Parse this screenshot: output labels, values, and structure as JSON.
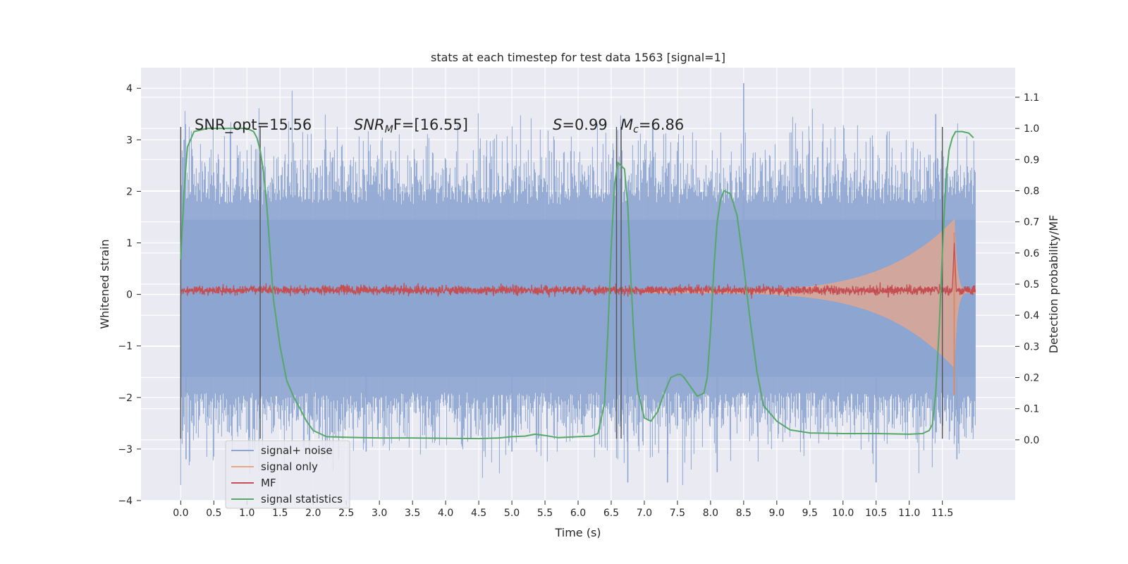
{
  "chart_data": {
    "type": "line",
    "title": "stats at each timestep for test data 1563 [signal=1]",
    "xlabel": "Time (s)",
    "ylabel": "Whitened strain",
    "y2label": "Detection probability/MF",
    "xlim": [
      -0.6,
      12.6
    ],
    "ylim": [
      -4.0,
      4.4
    ],
    "y2lim": [
      -0.195,
      1.195
    ],
    "grid": true,
    "legend_position": "lower-left",
    "x_ticks": [
      "0.0",
      "0.5",
      "1.0",
      "1.5",
      "2.0",
      "2.5",
      "3.0",
      "3.5",
      "4.0",
      "4.5",
      "5.0",
      "5.5",
      "6.0",
      "6.5",
      "7.0",
      "7.5",
      "8.0",
      "8.5",
      "9.0",
      "9.5",
      "10.0",
      "10.5",
      "11.0",
      "11.5"
    ],
    "y_ticks": [
      "4",
      "3",
      "2",
      "1",
      "0",
      "−1",
      "−2",
      "−3",
      "−4"
    ],
    "y2_ticks": [
      "1.1",
      "1.0",
      "0.9",
      "0.8",
      "0.7",
      "0.6",
      "0.5",
      "0.4",
      "0.3",
      "0.2",
      "0.1",
      "0.0"
    ],
    "annotations": {
      "snr_opt": "SNR_opt=15.56",
      "snr_mf_base": "SNR",
      "snr_mf_sub": "M",
      "snr_mf_rest": "F=[16.55]",
      "s_var": "S",
      "s_rest": "=0.99",
      "mc_var": "M",
      "mc_sub": "c",
      "mc_rest": "=6.86"
    },
    "series": [
      {
        "name": "signal+ noise",
        "color": "#8da5d0",
        "x_range": [
          0.0,
          12.0
        ],
        "band_core": [
          -1.6,
          1.45
        ],
        "spike_peaks": [
          [
            8.5,
            4.1
          ],
          [
            11.4,
            3.5
          ],
          [
            0.05,
            3.0
          ],
          [
            6.75,
            -3.65
          ],
          [
            7.35,
            -3.65
          ],
          [
            10.5,
            -3.65
          ],
          [
            8.1,
            -3.45
          ],
          [
            0.08,
            -3.2
          ],
          [
            2.8,
            -3.05
          ],
          [
            5.0,
            -3.05
          ],
          [
            11.72,
            -3.2
          ]
        ]
      },
      {
        "name": "signal only",
        "color": "#e8a58a",
        "chirp_start": 7.0,
        "chirp_peak_time": 11.68,
        "chirp_max_amp": 1.4
      },
      {
        "name": "MF",
        "color": "#c44e52",
        "baseline": 0.08,
        "spike_x": 11.68,
        "spike_y": 1.0
      },
      {
        "name": "signal statistics",
        "color": "#55a868",
        "x": [
          0.0,
          0.05,
          0.1,
          0.2,
          0.4,
          0.6,
          0.8,
          1.0,
          1.05,
          1.1,
          1.15,
          1.2,
          1.25,
          1.3,
          1.35,
          1.4,
          1.5,
          1.6,
          1.7,
          1.8,
          1.9,
          2.0,
          2.2,
          2.5,
          3.0,
          3.5,
          4.0,
          4.5,
          4.8,
          5.0,
          5.2,
          5.35,
          5.5,
          5.7,
          6.0,
          6.2,
          6.3,
          6.4,
          6.45,
          6.5,
          6.55,
          6.6,
          6.7,
          6.75,
          6.8,
          6.85,
          6.9,
          7.0,
          7.1,
          7.2,
          7.3,
          7.4,
          7.5,
          7.55,
          7.6,
          7.7,
          7.8,
          7.9,
          7.95,
          8.0,
          8.05,
          8.1,
          8.15,
          8.2,
          8.3,
          8.4,
          8.5,
          8.6,
          8.7,
          8.8,
          9.0,
          9.2,
          9.5,
          10.0,
          10.5,
          11.0,
          11.2,
          11.3,
          11.35,
          11.4,
          11.45,
          11.5,
          11.55,
          11.6,
          11.65,
          11.7,
          11.8,
          11.9,
          11.97
        ],
        "y": [
          0.58,
          0.8,
          0.94,
          0.99,
          1.0,
          1.0,
          1.0,
          1.0,
          0.995,
          0.99,
          0.97,
          0.93,
          0.86,
          0.75,
          0.6,
          0.45,
          0.3,
          0.19,
          0.14,
          0.1,
          0.06,
          0.03,
          0.01,
          0.008,
          0.006,
          0.006,
          0.005,
          0.004,
          0.006,
          0.01,
          0.012,
          0.018,
          0.014,
          0.007,
          0.01,
          0.012,
          0.02,
          0.12,
          0.35,
          0.62,
          0.82,
          0.89,
          0.87,
          0.75,
          0.5,
          0.3,
          0.16,
          0.07,
          0.06,
          0.09,
          0.15,
          0.2,
          0.21,
          0.21,
          0.2,
          0.17,
          0.14,
          0.15,
          0.2,
          0.35,
          0.55,
          0.7,
          0.77,
          0.8,
          0.79,
          0.72,
          0.56,
          0.38,
          0.22,
          0.11,
          0.06,
          0.032,
          0.022,
          0.02,
          0.02,
          0.018,
          0.02,
          0.03,
          0.05,
          0.15,
          0.35,
          0.6,
          0.82,
          0.93,
          0.97,
          0.99,
          0.99,
          0.985,
          0.97
        ]
      }
    ],
    "vertical_lines": [
      {
        "x": 0.0,
        "y_range": [
          -2.8,
          3.25
        ]
      },
      {
        "x": 1.2,
        "y_range": [
          -2.8,
          3.25
        ]
      },
      {
        "x": 6.58,
        "y_range": [
          -2.8,
          3.25
        ]
      },
      {
        "x": 6.65,
        "y_range": [
          -2.8,
          3.25
        ]
      },
      {
        "x": 11.5,
        "y_range": [
          -2.8,
          3.25
        ]
      }
    ]
  }
}
